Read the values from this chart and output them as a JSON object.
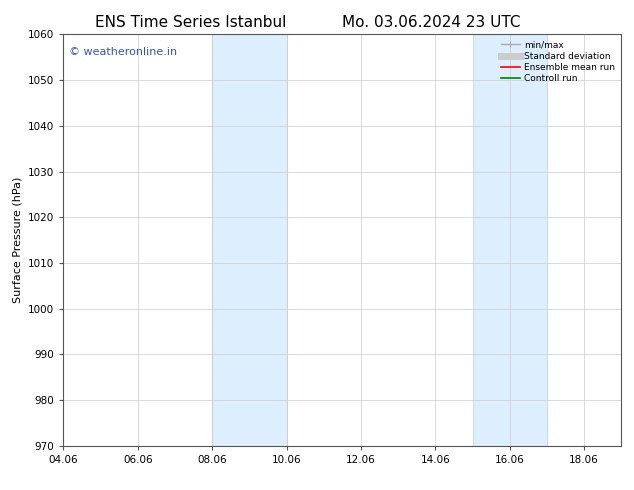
{
  "title_left": "ENS Time Series Istanbul",
  "title_right": "Mo. 03.06.2024 23 UTC",
  "ylabel": "Surface Pressure (hPa)",
  "ylim": [
    970,
    1060
  ],
  "yticks": [
    970,
    980,
    990,
    1000,
    1010,
    1020,
    1030,
    1040,
    1050,
    1060
  ],
  "xlim_start": 4.06,
  "xlim_end": 19.06,
  "xtick_labels": [
    "04.06",
    "06.06",
    "08.06",
    "10.06",
    "12.06",
    "14.06",
    "16.06",
    "18.06"
  ],
  "xtick_positions": [
    4.06,
    6.06,
    8.06,
    10.06,
    12.06,
    14.06,
    16.06,
    18.06
  ],
  "shaded_bands": [
    {
      "x_start": 8.06,
      "x_end": 10.06
    },
    {
      "x_start": 15.06,
      "x_end": 17.06
    }
  ],
  "shaded_color": "#ddeeff",
  "shaded_edge_color": "#c8dff0",
  "watermark_text": "© weatheronline.in",
  "watermark_color": "#3355bb",
  "legend_entries": [
    {
      "label": "min/max",
      "color": "#aaaaaa",
      "linestyle": "-",
      "linewidth": 1.0
    },
    {
      "label": "Standard deviation",
      "color": "#cccccc",
      "linestyle": "-",
      "linewidth": 5.0
    },
    {
      "label": "Ensemble mean run",
      "color": "red",
      "linestyle": "-",
      "linewidth": 1.2
    },
    {
      "label": "Controll run",
      "color": "green",
      "linestyle": "-",
      "linewidth": 1.2
    }
  ],
  "background_color": "#ffffff",
  "grid_color": "#cccccc",
  "title_fontsize": 11,
  "axis_fontsize": 8,
  "tick_fontsize": 7.5,
  "watermark_fontsize": 8
}
